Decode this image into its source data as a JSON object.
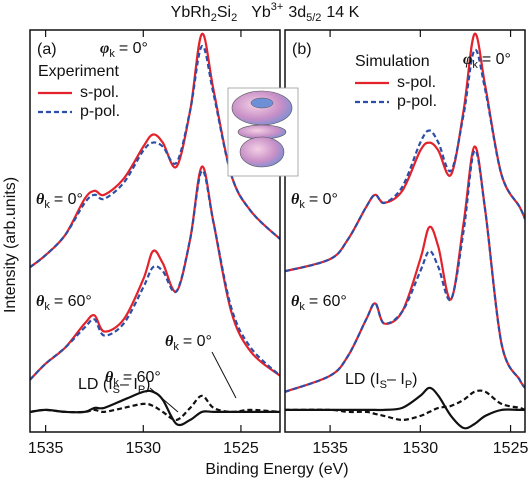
{
  "figure": {
    "title": [
      "YbRh",
      "2",
      "Si",
      "2",
      "Yb",
      "3+",
      "3d",
      "5/2",
      "14 K"
    ],
    "xlabel": "Binding Energy (eV)",
    "ylabel": "Intensity (arb.units)"
  },
  "chart_data": [
    {
      "type": "line",
      "label": "(a)",
      "azimuth": {
        "symbol": "φ",
        "sub": "k",
        "text": "= 0°"
      },
      "legend_title": "Experiment",
      "curve_labels": [
        {
          "symbol": "θ",
          "sub": "k",
          "text": "= 0°"
        },
        {
          "symbol": "θ",
          "sub": "k",
          "text": "= 60°"
        }
      ],
      "ld_label": [
        "LD (I",
        "S",
        "– I",
        "P",
        ")"
      ],
      "ld_pointers": [
        {
          "symbol": "θ",
          "sub": "k",
          "text": "= 0°"
        },
        {
          "symbol": "θ",
          "sub": "k",
          "text": "= 60°"
        }
      ],
      "xlim": [
        1535.8,
        1523
      ],
      "xticks": [
        1535,
        1530,
        1525
      ],
      "ylim": [
        0,
        100
      ],
      "x": [
        1535.8,
        1535,
        1534,
        1533,
        1532.5,
        1532,
        1531,
        1530,
        1529.5,
        1529,
        1528.3,
        1527.6,
        1527,
        1526.4,
        1525.5,
        1524.5,
        1523
      ],
      "series": [
        {
          "name": "s-pol.",
          "color": "#e3222b",
          "dash": false,
          "values": [
            41,
            44,
            49,
            58,
            60,
            59,
            63,
            71,
            74,
            72,
            66,
            80,
            99,
            85,
            64,
            55,
            48
          ]
        },
        {
          "name": "p-pol.",
          "color": "#2b4ea8",
          "dash": true,
          "values": [
            41,
            44,
            49,
            57,
            59,
            58,
            62,
            70,
            72,
            71,
            67,
            80,
            96,
            84,
            64,
            55,
            48
          ]
        },
        {
          "color": "#e3222b",
          "dash": false,
          "values": [
            13,
            17,
            21,
            27,
            29,
            25,
            28,
            38,
            45,
            42,
            35,
            48,
            66,
            52,
            30,
            20,
            14
          ]
        },
        {
          "color": "#2b4ea8",
          "dash": true,
          "values": [
            13,
            17,
            21,
            26,
            28,
            24,
            27,
            36,
            41,
            40,
            35,
            48,
            65,
            52,
            31,
            21,
            14
          ]
        },
        {
          "color": "#111111",
          "dash": true,
          "values": [
            5,
            5.5,
            5,
            5,
            5.5,
            5,
            6,
            7,
            6.5,
            5,
            3,
            6,
            9,
            6,
            5,
            5.5,
            5
          ]
        },
        {
          "color": "#111111",
          "dash": false,
          "values": [
            5,
            5.5,
            5,
            5,
            6,
            6,
            8,
            10,
            10,
            8,
            2,
            3,
            5,
            5,
            5,
            5,
            5
          ]
        }
      ]
    },
    {
      "type": "line",
      "label": "(b)",
      "azimuth": {
        "symbol": "φ",
        "sub": "k",
        "text": "= 0°"
      },
      "legend_title": "Simulation",
      "curve_labels": [
        {
          "symbol": "θ",
          "sub": "k",
          "text": "= 0°"
        },
        {
          "symbol": "θ",
          "sub": "k",
          "text": "= 60°"
        }
      ],
      "ld_label": [
        "LD (I",
        "S",
        "– I",
        "P",
        ")"
      ],
      "xlim": [
        1537.5,
        1524.2
      ],
      "xticks": [
        1535,
        1530,
        1525
      ],
      "ylim": [
        0,
        100
      ],
      "x": [
        1537.5,
        1535,
        1534,
        1533,
        1532.5,
        1532,
        1531,
        1530,
        1529.5,
        1529,
        1528.3,
        1527.6,
        1527,
        1526.4,
        1525.5,
        1524.5,
        1524.2
      ],
      "series": [
        {
          "name": "s-pol.",
          "color": "#e3222b",
          "dash": false,
          "values": [
            40,
            43,
            48,
            56,
            59,
            57,
            60,
            70,
            72,
            70,
            64,
            80,
            99,
            86,
            64,
            56,
            53
          ]
        },
        {
          "name": "p-pol.",
          "color": "#2b4ea8",
          "dash": true,
          "values": [
            40,
            43,
            48,
            56,
            59,
            57,
            61,
            72,
            75,
            72,
            65,
            79,
            95,
            85,
            64,
            56,
            53
          ]
        },
        {
          "color": "#e3222b",
          "dash": false,
          "values": [
            10,
            14,
            19,
            28,
            32,
            27,
            30,
            43,
            51,
            46,
            33,
            52,
            71,
            55,
            22,
            13,
            11
          ]
        },
        {
          "color": "#2b4ea8",
          "dash": true,
          "values": [
            10,
            14,
            19,
            28,
            32,
            27,
            30,
            40,
            45,
            41,
            33,
            50,
            70,
            55,
            22,
            13,
            11
          ]
        },
        {
          "color": "#111111",
          "dash": false,
          "values": [
            5.5,
            5.5,
            5.5,
            5.5,
            5.5,
            5.5,
            6,
            9,
            11,
            9,
            4,
            1,
            2,
            4,
            5.5,
            5.5,
            5.5
          ]
        },
        {
          "color": "#111111",
          "dash": true,
          "values": [
            5.5,
            5.5,
            5,
            5,
            4.5,
            4,
            3,
            4,
            5,
            6,
            6.5,
            8,
            10,
            10,
            7,
            6,
            5.5
          ]
        }
      ]
    }
  ]
}
